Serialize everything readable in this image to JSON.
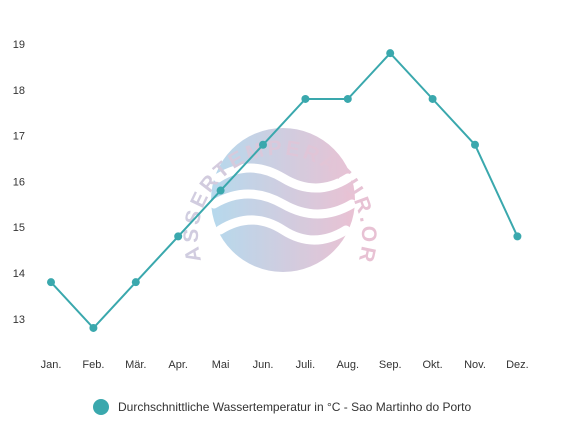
{
  "colors": {
    "series": "#3aa8ad",
    "tick_text": "#333333",
    "watermark_blue": "#a9d3ea",
    "watermark_pink": "#e6b7cc"
  },
  "watermark": {
    "text": "WASSERTEMPERATUR.ORG"
  },
  "chart_data": {
    "type": "line",
    "title": "",
    "xlabel": "",
    "ylabel": "",
    "categories": [
      "Jan.",
      "Feb.",
      "Mär.",
      "Apr.",
      "Mai",
      "Jun.",
      "Juli.",
      "Aug.",
      "Sep.",
      "Okt.",
      "Nov.",
      "Dez."
    ],
    "y_ticks": [
      13,
      14,
      15,
      16,
      17,
      18,
      19
    ],
    "ylim": [
      12.5,
      19.5
    ],
    "grid": false,
    "legend_position": "bottom",
    "series": [
      {
        "name": "Durchschnittliche Wassertemperatur in °C - Sao Martinho do Porto",
        "values": [
          13.8,
          12.8,
          13.8,
          14.8,
          15.8,
          16.8,
          17.8,
          17.8,
          18.8,
          17.8,
          16.8,
          14.8
        ]
      }
    ]
  }
}
